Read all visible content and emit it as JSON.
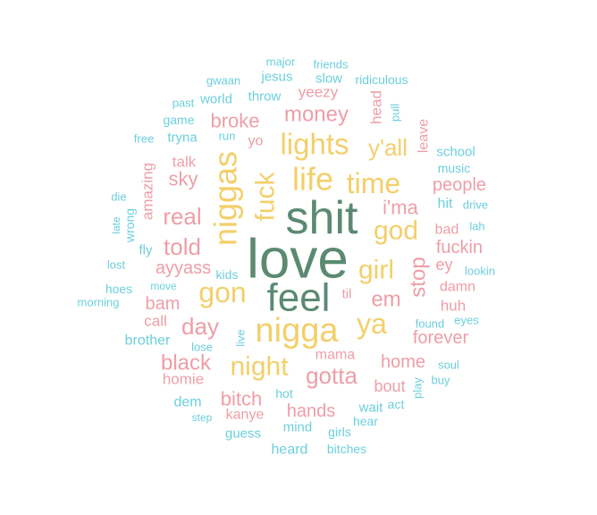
{
  "colors": {
    "green": "#5a8a72",
    "yellow": "#f3cf6a",
    "pink": "#ee9ea6",
    "cyan": "#6ccfdc"
  },
  "words": [
    {
      "text": "love",
      "color": "green",
      "orient": "h"
    },
    {
      "text": "shit",
      "color": "green",
      "orient": "h"
    },
    {
      "text": "feel",
      "color": "green",
      "orient": "h"
    },
    {
      "text": "nigga",
      "color": "yellow",
      "orient": "h"
    },
    {
      "text": "niggas",
      "color": "yellow",
      "orient": "v"
    },
    {
      "text": "life",
      "color": "yellow",
      "orient": "h"
    },
    {
      "text": "lights",
      "color": "yellow",
      "orient": "h"
    },
    {
      "text": "time",
      "color": "yellow",
      "orient": "h"
    },
    {
      "text": "fuck",
      "color": "yellow",
      "orient": "v"
    },
    {
      "text": "gon",
      "color": "yellow",
      "orient": "h"
    },
    {
      "text": "girl",
      "color": "yellow",
      "orient": "h"
    },
    {
      "text": "god",
      "color": "yellow",
      "orient": "h"
    },
    {
      "text": "ya",
      "color": "yellow",
      "orient": "h"
    },
    {
      "text": "y'all",
      "color": "yellow",
      "orient": "h"
    },
    {
      "text": "night",
      "color": "yellow",
      "orient": "h"
    },
    {
      "text": "gotta",
      "color": "pink",
      "orient": "h"
    },
    {
      "text": "money",
      "color": "pink",
      "orient": "h"
    },
    {
      "text": "told",
      "color": "pink",
      "orient": "h"
    },
    {
      "text": "real",
      "color": "pink",
      "orient": "h"
    },
    {
      "text": "day",
      "color": "pink",
      "orient": "h"
    },
    {
      "text": "em",
      "color": "pink",
      "orient": "h"
    },
    {
      "text": "i'ma",
      "color": "pink",
      "orient": "h"
    },
    {
      "text": "stop",
      "color": "pink",
      "orient": "v"
    },
    {
      "text": "black",
      "color": "pink",
      "orient": "h"
    },
    {
      "text": "broke",
      "color": "pink",
      "orient": "h"
    },
    {
      "text": "sky",
      "color": "pink",
      "orient": "h"
    },
    {
      "text": "bitch",
      "color": "pink",
      "orient": "h"
    },
    {
      "text": "home",
      "color": "pink",
      "orient": "h"
    },
    {
      "text": "forever",
      "color": "pink",
      "orient": "h"
    },
    {
      "text": "hands",
      "color": "pink",
      "orient": "h"
    },
    {
      "text": "people",
      "color": "pink",
      "orient": "h"
    },
    {
      "text": "fuckin",
      "color": "pink",
      "orient": "h"
    },
    {
      "text": "bam",
      "color": "pink",
      "orient": "h"
    },
    {
      "text": "ayyass",
      "color": "pink",
      "orient": "h"
    },
    {
      "text": "amazing",
      "color": "pink",
      "orient": "v"
    },
    {
      "text": "bout",
      "color": "pink",
      "orient": "h"
    },
    {
      "text": "talk",
      "color": "pink",
      "orient": "h"
    },
    {
      "text": "yeezy",
      "color": "pink",
      "orient": "h"
    },
    {
      "text": "head",
      "color": "pink",
      "orient": "v"
    },
    {
      "text": "leave",
      "color": "pink",
      "orient": "v"
    },
    {
      "text": "homie",
      "color": "pink",
      "orient": "h"
    },
    {
      "text": "mama",
      "color": "pink",
      "orient": "h"
    },
    {
      "text": "call",
      "color": "pink",
      "orient": "h"
    },
    {
      "text": "huh",
      "color": "pink",
      "orient": "h"
    },
    {
      "text": "damn",
      "color": "pink",
      "orient": "h"
    },
    {
      "text": "bad",
      "color": "pink",
      "orient": "h"
    },
    {
      "text": "ey",
      "color": "pink",
      "orient": "h"
    },
    {
      "text": "yo",
      "color": "pink",
      "orient": "h"
    },
    {
      "text": "til",
      "color": "pink",
      "orient": "h"
    },
    {
      "text": "kanye",
      "color": "pink",
      "orient": "h"
    },
    {
      "text": "wrong",
      "color": "cyan",
      "orient": "v"
    },
    {
      "text": "brother",
      "color": "cyan",
      "orient": "h"
    },
    {
      "text": "hit",
      "color": "cyan",
      "orient": "h"
    },
    {
      "text": "school",
      "color": "cyan",
      "orient": "h"
    },
    {
      "text": "music",
      "color": "cyan",
      "orient": "h"
    },
    {
      "text": "drive",
      "color": "cyan",
      "orient": "h"
    },
    {
      "text": "lah",
      "color": "cyan",
      "orient": "h"
    },
    {
      "text": "lookin",
      "color": "cyan",
      "orient": "h"
    },
    {
      "text": "tryna",
      "color": "cyan",
      "orient": "h"
    },
    {
      "text": "throw",
      "color": "cyan",
      "orient": "h"
    },
    {
      "text": "world",
      "color": "cyan",
      "orient": "h"
    },
    {
      "text": "jesus",
      "color": "cyan",
      "orient": "h"
    },
    {
      "text": "slow",
      "color": "cyan",
      "orient": "h"
    },
    {
      "text": "ridiculous",
      "color": "cyan",
      "orient": "h"
    },
    {
      "text": "friends",
      "color": "cyan",
      "orient": "h"
    },
    {
      "text": "major",
      "color": "cyan",
      "orient": "h"
    },
    {
      "text": "gwaan",
      "color": "cyan",
      "orient": "h"
    },
    {
      "text": "past",
      "color": "cyan",
      "orient": "h"
    },
    {
      "text": "game",
      "color": "cyan",
      "orient": "h"
    },
    {
      "text": "free",
      "color": "cyan",
      "orient": "h"
    },
    {
      "text": "run",
      "color": "cyan",
      "orient": "h"
    },
    {
      "text": "pull",
      "color": "cyan",
      "orient": "v"
    },
    {
      "text": "die",
      "color": "cyan",
      "orient": "h"
    },
    {
      "text": "late",
      "color": "cyan",
      "orient": "v"
    },
    {
      "text": "fly",
      "color": "cyan",
      "orient": "h"
    },
    {
      "text": "lost",
      "color": "cyan",
      "orient": "h"
    },
    {
      "text": "kids",
      "color": "cyan",
      "orient": "h"
    },
    {
      "text": "move",
      "color": "cyan",
      "orient": "h"
    },
    {
      "text": "hoes",
      "color": "cyan",
      "orient": "h"
    },
    {
      "text": "morning",
      "color": "cyan",
      "orient": "h"
    },
    {
      "text": "lose",
      "color": "cyan",
      "orient": "h"
    },
    {
      "text": "live",
      "color": "cyan",
      "orient": "v"
    },
    {
      "text": "found",
      "color": "cyan",
      "orient": "h"
    },
    {
      "text": "eyes",
      "color": "cyan",
      "orient": "h"
    },
    {
      "text": "soul",
      "color": "cyan",
      "orient": "h"
    },
    {
      "text": "buy",
      "color": "cyan",
      "orient": "h"
    },
    {
      "text": "play",
      "color": "cyan",
      "orient": "v"
    },
    {
      "text": "act",
      "color": "cyan",
      "orient": "h"
    },
    {
      "text": "wait",
      "color": "cyan",
      "orient": "h"
    },
    {
      "text": "hear",
      "color": "cyan",
      "orient": "h"
    },
    {
      "text": "hot",
      "color": "cyan",
      "orient": "h"
    },
    {
      "text": "dem",
      "color": "cyan",
      "orient": "h"
    },
    {
      "text": "step",
      "color": "cyan",
      "orient": "h"
    },
    {
      "text": "guess",
      "color": "cyan",
      "orient": "h"
    },
    {
      "text": "mind",
      "color": "cyan",
      "orient": "h"
    },
    {
      "text": "girls",
      "color": "cyan",
      "orient": "h"
    },
    {
      "text": "heard",
      "color": "cyan",
      "orient": "h"
    },
    {
      "text": "bitches",
      "color": "cyan",
      "orient": "h"
    }
  ]
}
